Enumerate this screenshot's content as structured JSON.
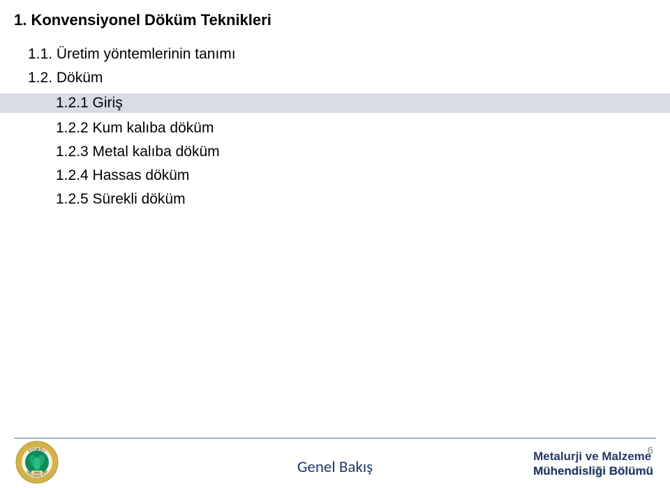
{
  "title": {
    "text": "1. Konvensiyonel Döküm Teknikleri",
    "fontsize": 22
  },
  "content": {
    "fontsize": 21,
    "lines": [
      {
        "text": "1.1. Üretim yöntemlerinin tanımı",
        "indent": 1,
        "highlight": false
      },
      {
        "text": "1.2. Döküm",
        "indent": 1,
        "highlight": false
      },
      {
        "text": "1.2.1 Giriş",
        "indent": 2,
        "highlight": true
      },
      {
        "text": "1.2.2 Kum kalıba döküm",
        "indent": 2,
        "highlight": false
      },
      {
        "text": "1.2.3 Metal kalıba döküm",
        "indent": 2,
        "highlight": false
      },
      {
        "text": "1.2.4 Hassas döküm",
        "indent": 2,
        "highlight": false
      },
      {
        "text": "1.2.5 Sürekli döküm",
        "indent": 2,
        "highlight": false
      }
    ]
  },
  "footer": {
    "center": {
      "text": "Genel Bakış",
      "fontsize": 23
    },
    "right_line1": "Metalurji ve Malzeme",
    "right_line2": "Mühendisliği Bölümü",
    "right_fontsize": 17,
    "page_number": "6",
    "page_number_fontsize": 15
  },
  "logo": {
    "outer_ring_color": "#d3b24a",
    "inner_color": "#0f8a5a",
    "year_text": "1992",
    "top_text": "KOCAELİ",
    "bottom_text": "ÜNİVERSİTESİ"
  },
  "colors": {
    "highlight_bg": "#d7dce7",
    "footer_text": "#213a66",
    "divider": "#5b78a4",
    "page_num": "#888888"
  }
}
